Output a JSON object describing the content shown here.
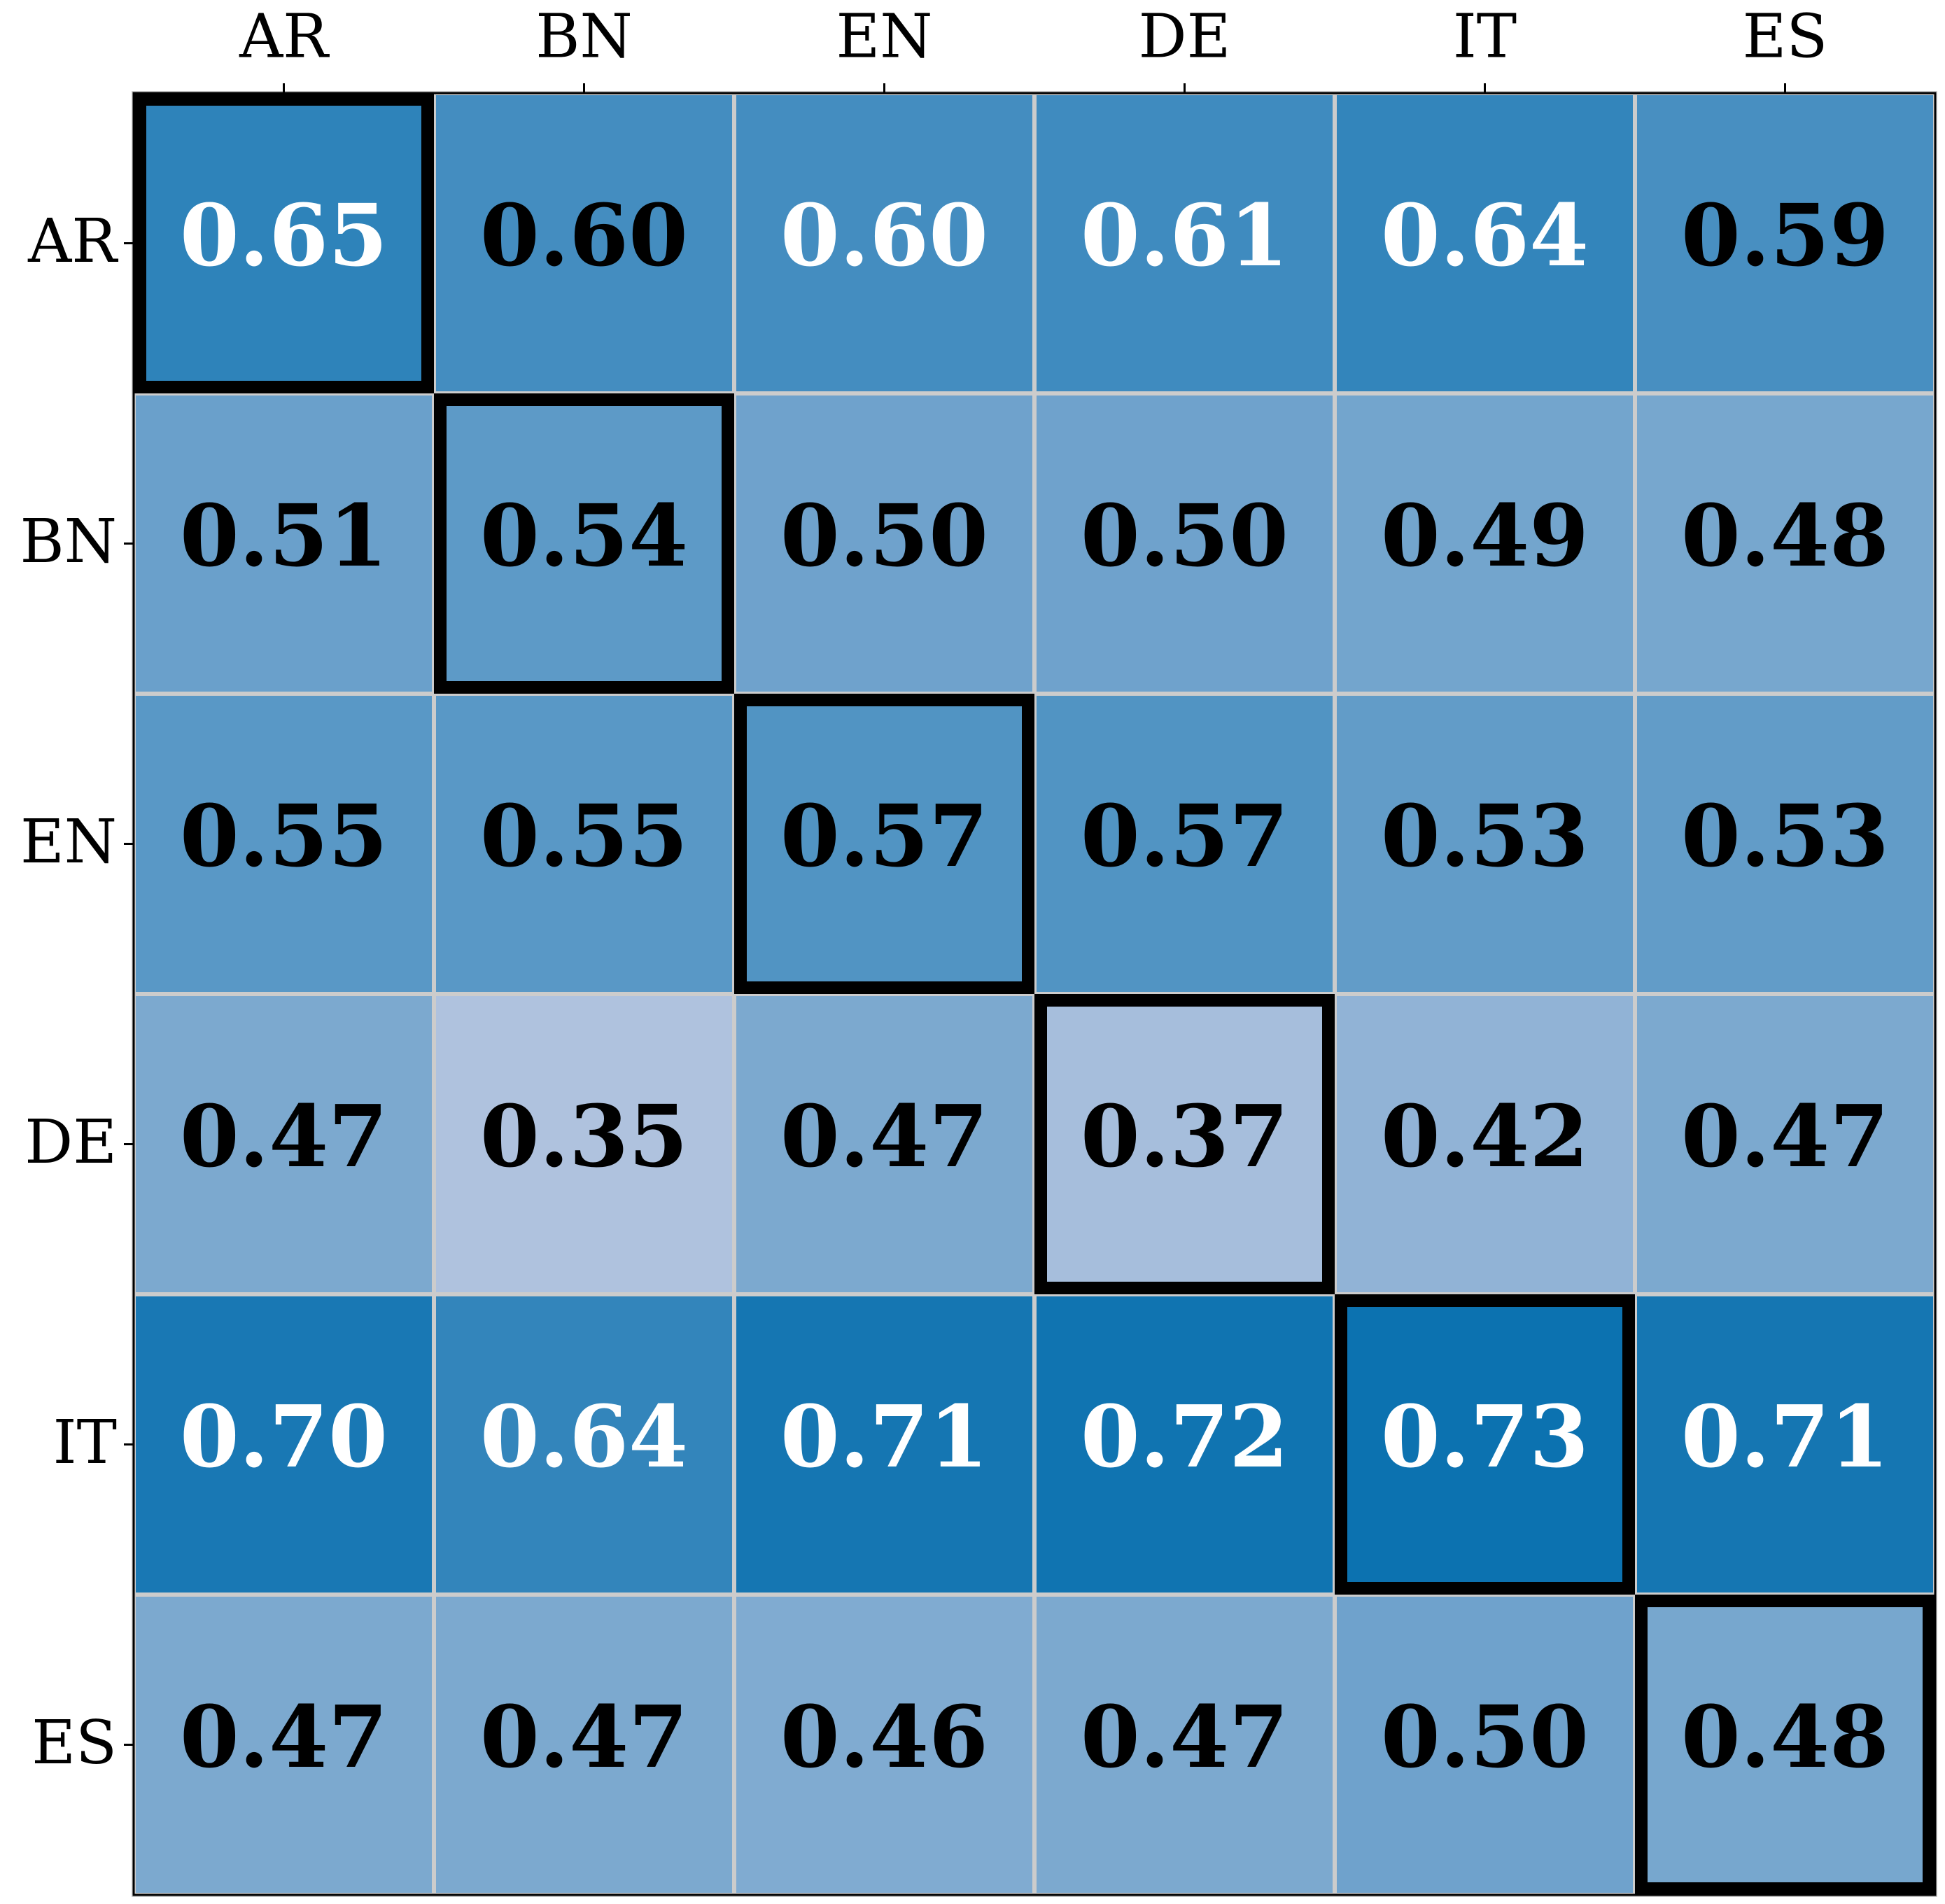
{
  "chart_data": {
    "type": "heatmap",
    "x_categories": [
      "AR",
      "BN",
      "EN",
      "DE",
      "IT",
      "ES"
    ],
    "y_categories": [
      "AR",
      "BN",
      "EN",
      "DE",
      "IT",
      "ES"
    ],
    "values": [
      [
        0.65,
        0.6,
        0.6,
        0.61,
        0.64,
        0.59
      ],
      [
        0.51,
        0.54,
        0.5,
        0.5,
        0.49,
        0.48
      ],
      [
        0.55,
        0.55,
        0.57,
        0.57,
        0.53,
        0.53
      ],
      [
        0.47,
        0.35,
        0.47,
        0.37,
        0.42,
        0.47
      ],
      [
        0.7,
        0.64,
        0.71,
        0.72,
        0.73,
        0.71
      ],
      [
        0.47,
        0.47,
        0.46,
        0.47,
        0.5,
        0.48
      ]
    ],
    "value_labels": [
      [
        "0.65",
        "0.60",
        "0.60",
        "0.61",
        "0.64",
        "0.59"
      ],
      [
        "0.51",
        "0.54",
        "0.50",
        "0.50",
        "0.49",
        "0.48"
      ],
      [
        "0.55",
        "0.55",
        "0.57",
        "0.57",
        "0.53",
        "0.53"
      ],
      [
        "0.47",
        "0.35",
        "0.47",
        "0.37",
        "0.42",
        "0.47"
      ],
      [
        "0.70",
        "0.64",
        "0.71",
        "0.72",
        "0.73",
        "0.71"
      ],
      [
        "0.47",
        "0.47",
        "0.46",
        "0.47",
        "0.50",
        "0.48"
      ]
    ],
    "label_colors": [
      [
        "#ffffff",
        "#000000",
        "#ffffff",
        "#ffffff",
        "#ffffff",
        "#000000"
      ],
      [
        "#000000",
        "#000000",
        "#000000",
        "#000000",
        "#000000",
        "#000000"
      ],
      [
        "#000000",
        "#000000",
        "#000000",
        "#000000",
        "#000000",
        "#000000"
      ],
      [
        "#000000",
        "#000000",
        "#000000",
        "#000000",
        "#000000",
        "#000000"
      ],
      [
        "#ffffff",
        "#ffffff",
        "#ffffff",
        "#ffffff",
        "#ffffff",
        "#ffffff"
      ],
      [
        "#000000",
        "#000000",
        "#000000",
        "#000000",
        "#000000",
        "#000000"
      ]
    ],
    "colormap": [
      "#afc2de",
      "#0c72b0"
    ],
    "grid_color": "#cccccc",
    "highlight_diagonal": true,
    "x_axis_position": "top"
  }
}
